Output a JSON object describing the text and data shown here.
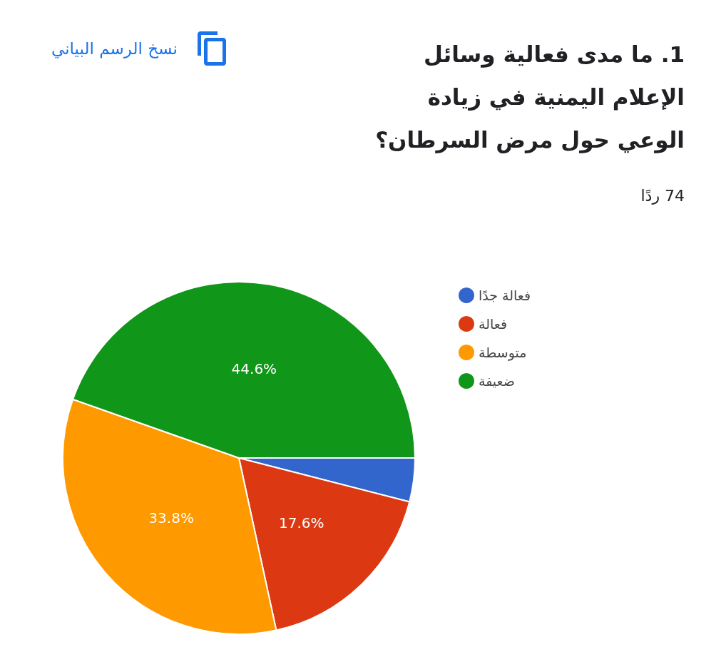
{
  "chart_data": {
    "type": "pie",
    "title": "1. ما مدى فعالية وسائل الإعلام اليمنية في زيادة الوعي حول مرض السرطان؟",
    "subtitle": "74 ردًا",
    "annotations": [
      "نسخ الرسم البياني"
    ],
    "categories": [
      "فعالة جدًا",
      "فعالة",
      "متوسطة",
      "ضعيفة"
    ],
    "values": [
      4.0,
      17.6,
      33.8,
      44.6
    ],
    "value_labels": [
      null,
      "17.6%",
      "33.8%",
      "44.6%"
    ],
    "colors": [
      "#3366cc",
      "#dc3912",
      "#ff9900",
      "#109618"
    ],
    "legend": "right"
  }
}
